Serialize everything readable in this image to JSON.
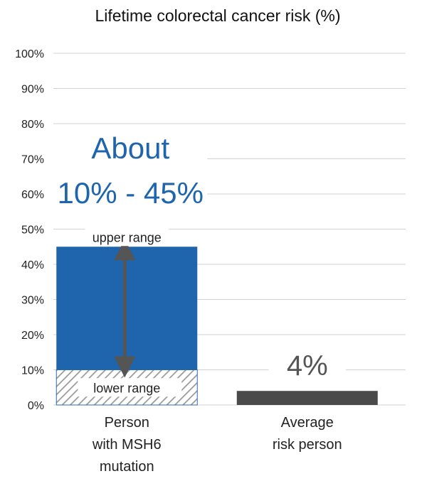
{
  "chart_data": {
    "type": "bar",
    "title": "Lifetime colorectal cancer risk (%)",
    "ylim": [
      0,
      100
    ],
    "y_ticks": [
      "0%",
      "10%",
      "20%",
      "30%",
      "40%",
      "50%",
      "60%",
      "70%",
      "80%",
      "90%",
      "100%"
    ],
    "grid": true,
    "categories": [
      {
        "lines": [
          "Person",
          "with MSH6",
          "mutation"
        ]
      },
      {
        "lines": [
          "Average",
          "risk person"
        ]
      }
    ],
    "bars": [
      {
        "category_index": 0,
        "lower": 10,
        "upper": 45,
        "hatched_base": [
          0,
          10
        ],
        "color": "#1f65ad",
        "upper_label": "upper range",
        "lower_label": "lower range"
      },
      {
        "category_index": 1,
        "value": 4,
        "color": "#4a4a4a",
        "value_label": "4%"
      }
    ],
    "annotation": {
      "lines": [
        "About",
        "10% - 45%"
      ],
      "color": "#1f65ad"
    }
  }
}
